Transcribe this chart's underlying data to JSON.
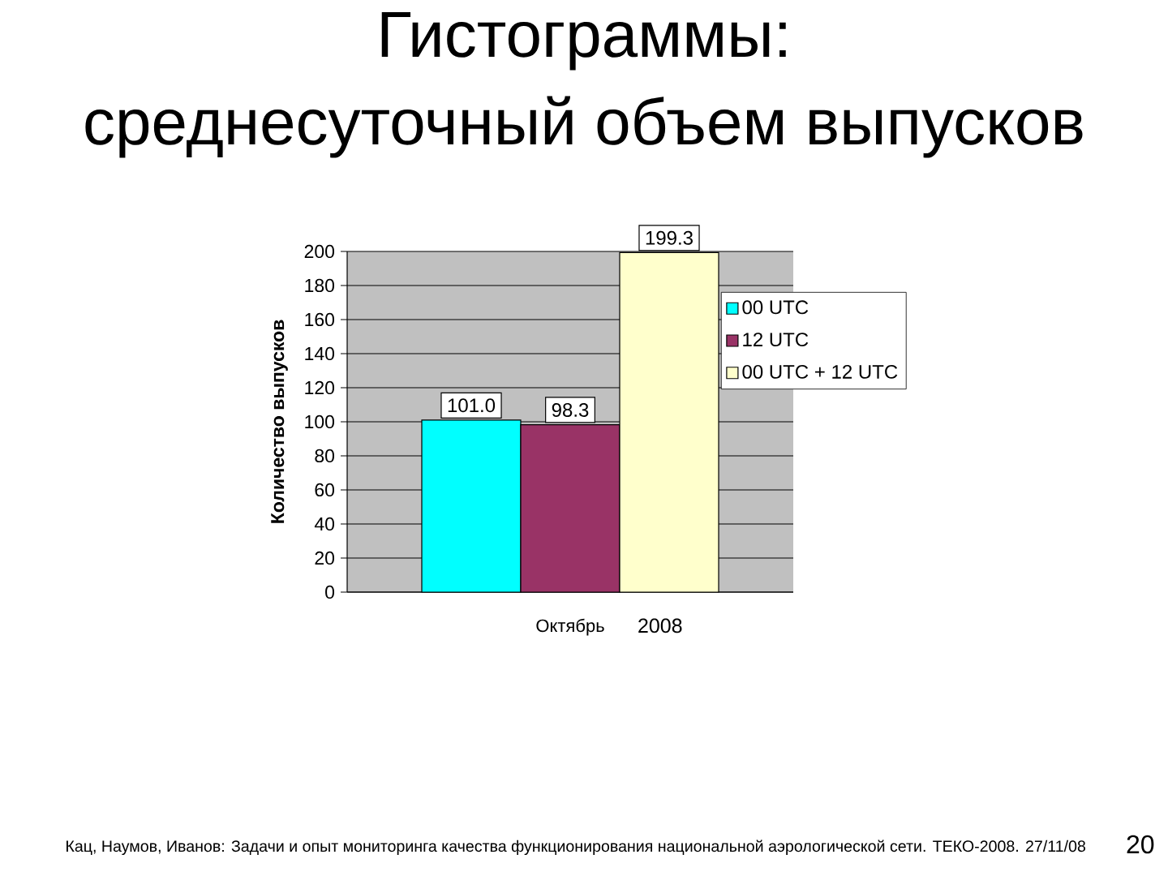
{
  "chart_data": {
    "type": "bar",
    "title": "Гистограммы:",
    "subtitle": "среднесуточный объем выпусков",
    "categories": [
      "Октябрь"
    ],
    "xlabel": "2008",
    "ylabel": "Количество выпусков",
    "series": [
      {
        "name": "00 UTC",
        "color": "#00ffff",
        "values": [
          101.0
        ],
        "value_labels": [
          "101.0"
        ]
      },
      {
        "name": "12 UTC",
        "color": "#993366",
        "values": [
          98.3
        ],
        "value_labels": [
          "98.3"
        ]
      },
      {
        "name": "00 UTC + 12 UTC",
        "color": "#ffffcc",
        "values": [
          199.3
        ],
        "value_labels": [
          "199.3"
        ]
      }
    ],
    "ylim": [
      0,
      200
    ],
    "yticks": [
      0,
      20,
      40,
      60,
      80,
      100,
      120,
      140,
      160,
      180,
      200
    ],
    "grid": "y",
    "legend": "right",
    "annotations": [
      "Кац, Наумов, Иванов: Задачи и опыт мониторинга качества функционирования национальной аэрологической сети. ТЕКО-2008. 27/11/08",
      "20"
    ]
  }
}
